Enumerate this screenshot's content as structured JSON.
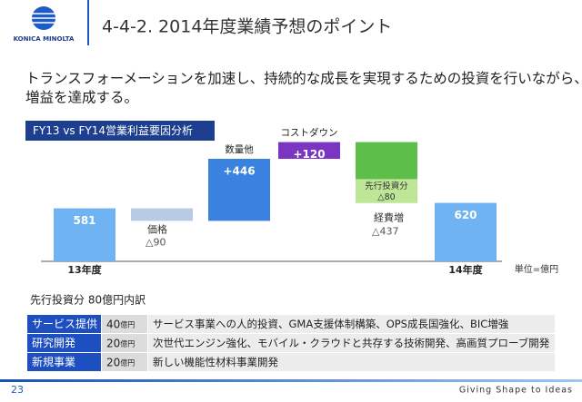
{
  "header": {
    "logo": "KONICA MINOLTA",
    "title": "4-4-2. 2014年度業績予想のポイント"
  },
  "headline": [
    "トランスフォーメーションを加速し、持続的な成長を実現するための投資を行いながら、",
    "増益を達成する。"
  ],
  "chart_data": {
    "type": "waterfall",
    "title": "FY13 vs FY14営業利益要因分析",
    "unit": "単位=億円",
    "categories": [
      "13年度",
      "価格",
      "数量他",
      "コストダウン",
      "経費増",
      "14年度"
    ],
    "values": [
      581,
      -90,
      446,
      120,
      -437,
      620
    ],
    "value_labels": [
      "581",
      "△90",
      "+446",
      "+120",
      "△437",
      "620"
    ],
    "colors": [
      "#6fb3f2",
      "#b9cbe2",
      "#3a82df",
      "#7a35c2",
      "#5dbf4a",
      "#6fb3f2"
    ],
    "breakdown": {
      "name": "先行投資分",
      "value": -80,
      "value_label": "△80",
      "color": "#c8eaa0"
    },
    "ylim": [
      200,
      1100
    ]
  },
  "table": {
    "title": "先行投資分 80億円内訳",
    "rows": [
      [
        "サービス提供",
        "40",
        "億円",
        "サービス事業への人的投資、GMA支援体制構築、OPS成長国強化、BIC増強"
      ],
      [
        "研究開発",
        "20",
        "億円",
        "次世代エンジン強化、モバイル・クラウドと共存する技術開発、高画質プローブ開発"
      ],
      [
        "新規事業",
        "20",
        "億円",
        "新しい機能性材料事業開発"
      ]
    ]
  },
  "footer": {
    "page": "23",
    "tagline": "Giving Shape to Ideas"
  }
}
